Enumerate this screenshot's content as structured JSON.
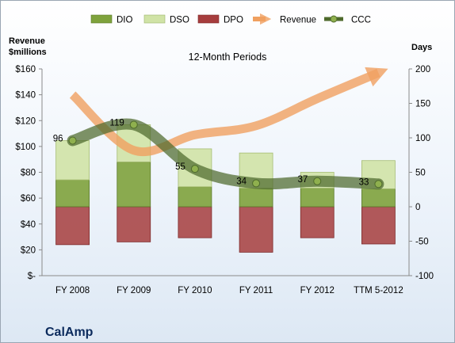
{
  "chart_data": {
    "type": "bar",
    "title": "12-Month Periods",
    "company": "CalAmp",
    "left_axis_title": [
      "Revenue",
      "$millions"
    ],
    "right_axis_title": "Days",
    "categories": [
      "FY 2008",
      "FY 2009",
      "FY 2010",
      "FY 2011",
      "FY 2012",
      "TTM 5-2012"
    ],
    "left_ticks": [
      "$-",
      "$20",
      "$40",
      "$60",
      "$80",
      "$100",
      "$120",
      "$140",
      "$160"
    ],
    "left_ylim": [
      0,
      160
    ],
    "right_ticks": [
      "-100",
      "-50",
      "0",
      "50",
      "100",
      "150",
      "200"
    ],
    "right_ylim": [
      -100,
      200
    ],
    "legend_position": "top",
    "series": [
      {
        "name": "DIO",
        "kind": "bar",
        "axis": "days",
        "values": [
          39,
          65,
          29,
          27,
          27,
          26
        ],
        "color": "#7ea23c"
      },
      {
        "name": "DSO",
        "kind": "bar",
        "axis": "days",
        "values": [
          57,
          54,
          55,
          51,
          23,
          41
        ],
        "color": "#d0e3a6"
      },
      {
        "name": "DPO",
        "kind": "bar",
        "axis": "days",
        "values": [
          -55,
          -51,
          -45,
          -66,
          -45,
          -54
        ],
        "color": "#a63d3d"
      },
      {
        "name": "Revenue",
        "kind": "arrow",
        "axis": "revenue",
        "values": [
          140,
          97,
          109,
          116,
          137,
          157
        ],
        "color": "#f0a060"
      },
      {
        "name": "CCC",
        "kind": "line",
        "axis": "days",
        "values": [
          96,
          119,
          55,
          34,
          37,
          33
        ],
        "color": "#4e6a2c"
      }
    ],
    "ccc_labels": [
      "96",
      "119",
      "55",
      "34",
      "37",
      "33"
    ],
    "grid": false
  }
}
